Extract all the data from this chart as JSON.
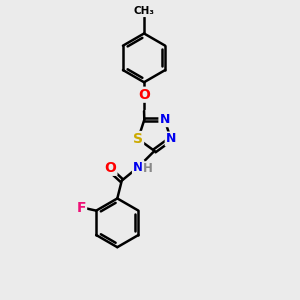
{
  "background_color": "#ebebeb",
  "bond_color": "#000000",
  "bond_width": 1.8,
  "atom_colors": {
    "C": "#000000",
    "N": "#0000ee",
    "O": "#ff0000",
    "S": "#ccaa00",
    "F": "#ee1177",
    "H": "#888888"
  },
  "font_size": 9,
  "figsize": [
    3.0,
    3.0
  ],
  "dpi": 100
}
